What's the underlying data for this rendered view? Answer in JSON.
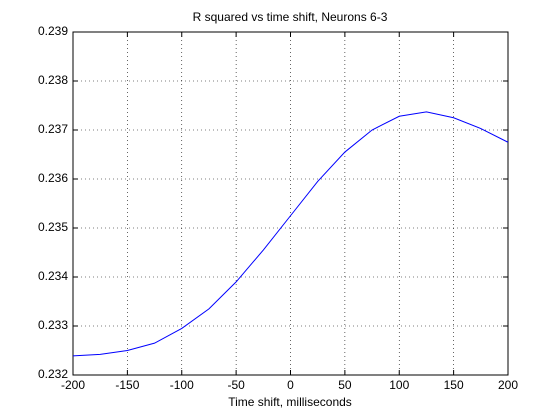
{
  "chart_data": {
    "type": "line",
    "title": "R squared vs time shift, Neurons 6-3",
    "x_label": "Time shift, milliseconds",
    "x": [
      -200,
      -175,
      -150,
      -125,
      -100,
      -75,
      -50,
      -25,
      0,
      25,
      50,
      75,
      100,
      125,
      150,
      175,
      200
    ],
    "series": [
      {
        "color": "#0000ff",
        "values": [
          0.23239,
          0.23242,
          0.2325,
          0.23265,
          0.23295,
          0.23335,
          0.2339,
          0.23455,
          0.23525,
          0.23595,
          0.23655,
          0.237,
          0.23728,
          0.23737,
          0.23725,
          0.23703,
          0.23675
        ]
      }
    ],
    "xlim": [
      -200,
      200
    ],
    "xticks": [
      -200,
      -150,
      -100,
      -50,
      0,
      50,
      100,
      150,
      200
    ],
    "ylim": [
      0.232,
      0.239
    ],
    "yticks": [
      0.232,
      0.233,
      0.234,
      0.235,
      0.236,
      0.237,
      0.238,
      0.239
    ],
    "grid": true
  }
}
